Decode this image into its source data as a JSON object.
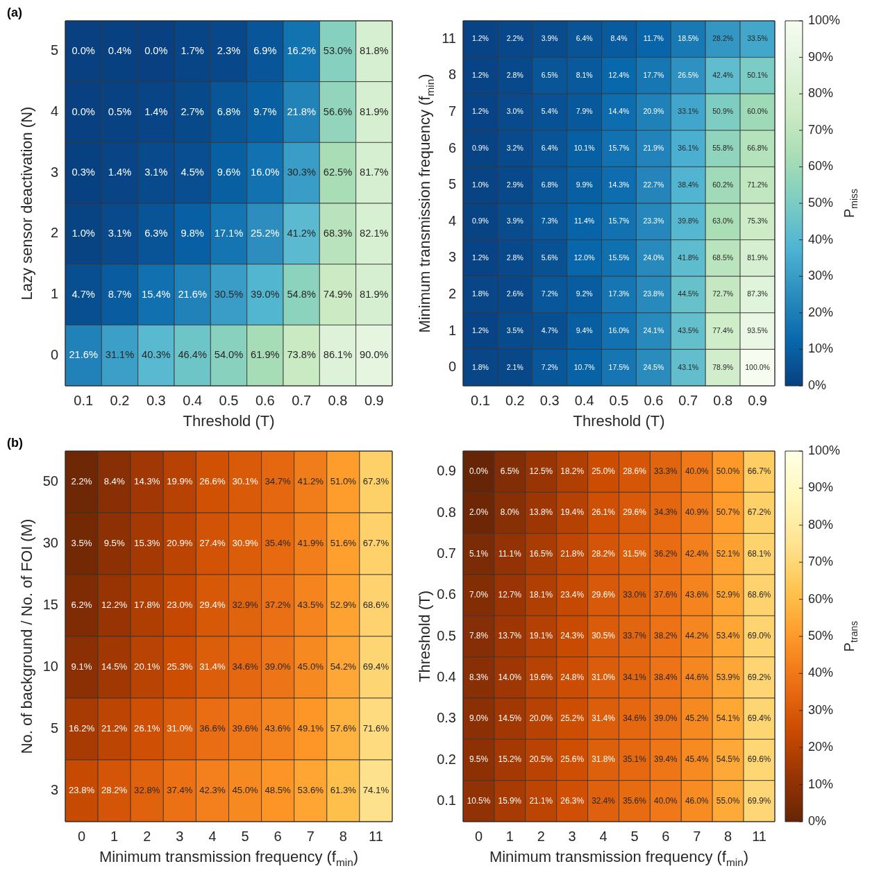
{
  "chart_data": [
    {
      "type": "heatmap",
      "annotations": [
        "(a)"
      ],
      "xlabel": "Threshold (T)",
      "ylabel": "Lazy sensor deactivation (N)",
      "categories": [
        "0.1",
        "0.2",
        "0.3",
        "0.4",
        "0.5",
        "0.6",
        "0.7",
        "0.8",
        "0.9"
      ],
      "y_categories": [
        "5",
        "4",
        "3",
        "2",
        "1",
        "0"
      ],
      "cells": [
        [
          0.0,
          0.4,
          0.0,
          1.7,
          2.3,
          6.9,
          16.2,
          53.0,
          81.8
        ],
        [
          0.0,
          0.5,
          1.4,
          2.7,
          6.8,
          9.7,
          21.8,
          56.6,
          81.9
        ],
        [
          0.3,
          1.4,
          3.1,
          4.5,
          9.6,
          16.0,
          30.3,
          62.5,
          81.7
        ],
        [
          1.0,
          3.1,
          6.3,
          9.8,
          17.1,
          25.2,
          41.2,
          68.3,
          82.1
        ],
        [
          4.7,
          8.7,
          15.4,
          21.6,
          30.5,
          39.0,
          54.8,
          74.9,
          81.9
        ],
        [
          21.6,
          31.1,
          40.3,
          46.4,
          54.0,
          61.9,
          73.8,
          86.1,
          90.0
        ]
      ],
      "cell_labels": [
        [
          "0.0%",
          "0.4%",
          "0.0%",
          "1.7%",
          "2.3%",
          "6.9%",
          "16.2%",
          "53.0%",
          "81.8%"
        ],
        [
          "0.0%",
          "0.5%",
          "1.4%",
          "2.7%",
          "6.8%",
          "9.7%",
          "21.8%",
          "56.6%",
          "81.9%"
        ],
        [
          "0.3%",
          "1.4%",
          "3.1%",
          "4.5%",
          "9.6%",
          "16.0%",
          "30.3%",
          "62.5%",
          "81.7%"
        ],
        [
          "1.0%",
          "3.1%",
          "6.3%",
          "9.8%",
          "17.1%",
          "25.2%",
          "41.2%",
          "68.3%",
          "82.1%"
        ],
        [
          "4.7%",
          "8.7%",
          "15.4%",
          "21.6%",
          "30.5%",
          "39.0%",
          "54.8%",
          "74.9%",
          "81.9%"
        ],
        [
          "21.6%",
          "31.1%",
          "40.3%",
          "46.4%",
          "54.0%",
          "61.9%",
          "73.8%",
          "86.1%",
          "90.0%"
        ]
      ]
    },
    {
      "type": "heatmap",
      "xlabel": "Threshold (T)",
      "ylabel": "Minimum transmission frequency (f$_{min}$)",
      "clabel": "P$_{miss}$",
      "categories": [
        "0.1",
        "0.2",
        "0.3",
        "0.4",
        "0.5",
        "0.6",
        "0.7",
        "0.8",
        "0.9"
      ],
      "y_categories": [
        "11",
        "8",
        "7",
        "6",
        "5",
        "4",
        "3",
        "2",
        "1",
        "0"
      ],
      "cells": [
        [
          1.2,
          2.2,
          3.9,
          6.4,
          8.4,
          11.7,
          18.5,
          28.2,
          33.5
        ],
        [
          1.2,
          2.8,
          6.5,
          8.1,
          12.4,
          17.7,
          26.5,
          42.4,
          50.1
        ],
        [
          1.2,
          3.0,
          5.4,
          7.9,
          14.4,
          20.9,
          33.1,
          50.9,
          60.0
        ],
        [
          0.9,
          3.2,
          6.4,
          10.1,
          15.7,
          21.9,
          36.1,
          55.8,
          66.8
        ],
        [
          1.0,
          2.9,
          6.8,
          9.9,
          14.3,
          22.7,
          38.4,
          60.2,
          71.2
        ],
        [
          0.9,
          3.9,
          7.3,
          11.4,
          15.7,
          23.3,
          39.8,
          63.0,
          75.3
        ],
        [
          1.2,
          2.8,
          5.6,
          12.0,
          15.5,
          24.0,
          41.8,
          68.5,
          81.9
        ],
        [
          1.8,
          2.6,
          7.2,
          9.2,
          17.3,
          23.8,
          44.5,
          72.7,
          87.3
        ],
        [
          1.2,
          3.5,
          4.7,
          9.4,
          16.0,
          24.1,
          43.5,
          77.4,
          93.5
        ],
        [
          1.8,
          2.1,
          7.2,
          10.7,
          17.5,
          24.5,
          43.1,
          78.9,
          100.0
        ]
      ],
      "cell_labels": [
        [
          "1.2%",
          "2.2%",
          "3.9%",
          "6.4%",
          "8.4%",
          "11.7%",
          "18.5%",
          "28.2%",
          "33.5%"
        ],
        [
          "1.2%",
          "2.8%",
          "6.5%",
          "8.1%",
          "12.4%",
          "17.7%",
          "26.5%",
          "42.4%",
          "50.1%"
        ],
        [
          "1.2%",
          "3.0%",
          "5.4%",
          "7.9%",
          "14.4%",
          "20.9%",
          "33.1%",
          "50.9%",
          "60.0%"
        ],
        [
          "0.9%",
          "3.2%",
          "6.4%",
          "10.1%",
          "15.7%",
          "21.9%",
          "36.1%",
          "55.8%",
          "66.8%"
        ],
        [
          "1.0%",
          "2.9%",
          "6.8%",
          "9.9%",
          "14.3%",
          "22.7%",
          "38.4%",
          "60.2%",
          "71.2%"
        ],
        [
          "0.9%",
          "3.9%",
          "7.3%",
          "11.4%",
          "15.7%",
          "23.3%",
          "39.8%",
          "63.0%",
          "75.3%"
        ],
        [
          "1.2%",
          "2.8%",
          "5.6%",
          "12.0%",
          "15.5%",
          "24.0%",
          "41.8%",
          "68.5%",
          "81.9%"
        ],
        [
          "1.8%",
          "2.6%",
          "7.2%",
          "9.2%",
          "17.3%",
          "23.8%",
          "44.5%",
          "72.7%",
          "87.3%"
        ],
        [
          "1.2%",
          "3.5%",
          "4.7%",
          "9.4%",
          "16.0%",
          "24.1%",
          "43.5%",
          "77.4%",
          "93.5%"
        ],
        [
          "1.8%",
          "2.1%",
          "7.2%",
          "10.7%",
          "17.5%",
          "24.5%",
          "43.1%",
          "78.9%",
          "100.0%"
        ]
      ],
      "clim": [
        0,
        100
      ],
      "cticks": [
        {
          "value": 0,
          "label": "0%"
        },
        {
          "value": 10,
          "label": "10%"
        },
        {
          "value": 20,
          "label": "20%"
        },
        {
          "value": 30,
          "label": "30%"
        },
        {
          "value": 40,
          "label": "40%"
        },
        {
          "value": 50,
          "label": "50%"
        },
        {
          "value": 60,
          "label": "60%"
        },
        {
          "value": 70,
          "label": "70%"
        },
        {
          "value": 80,
          "label": "80%"
        },
        {
          "value": 90,
          "label": "90%"
        },
        {
          "value": 100,
          "label": "100%"
        }
      ],
      "colors": [
        "#084081",
        "#0868ac",
        "#2b8cbe",
        "#4eb3d3",
        "#7bccc4",
        "#a8ddb5",
        "#ccebc5",
        "#e0f3db",
        "#f7fcf0"
      ]
    },
    {
      "type": "heatmap",
      "annotations": [
        "(b)"
      ],
      "xlabel": "Minimum transmission frequency (f$_{min}$)",
      "ylabel": "No. of background / No. of FOI (M)",
      "categories": [
        "0",
        "1",
        "2",
        "3",
        "4",
        "5",
        "6",
        "7",
        "8",
        "11"
      ],
      "y_categories": [
        "50",
        "30",
        "15",
        "10",
        "5",
        "3"
      ],
      "cells": [
        [
          2.2,
          8.4,
          14.3,
          19.9,
          26.6,
          30.1,
          34.7,
          41.2,
          51.0,
          67.3
        ],
        [
          3.5,
          9.5,
          15.3,
          20.9,
          27.4,
          30.9,
          35.4,
          41.9,
          51.6,
          67.7
        ],
        [
          6.2,
          12.2,
          17.8,
          23.0,
          29.4,
          32.9,
          37.2,
          43.5,
          52.9,
          68.6
        ],
        [
          9.1,
          14.5,
          20.1,
          25.3,
          31.4,
          34.6,
          39.0,
          45.0,
          54.2,
          69.4
        ],
        [
          16.2,
          21.2,
          26.1,
          31.0,
          36.6,
          39.6,
          43.6,
          49.1,
          57.6,
          71.6
        ],
        [
          23.8,
          28.2,
          32.8,
          37.4,
          42.3,
          45.0,
          48.5,
          53.6,
          61.3,
          74.1
        ]
      ],
      "cell_labels": [
        [
          "2.2%",
          "8.4%",
          "14.3%",
          "19.9%",
          "26.6%",
          "30.1%",
          "34.7%",
          "41.2%",
          "51.0%",
          "67.3%"
        ],
        [
          "3.5%",
          "9.5%",
          "15.3%",
          "20.9%",
          "27.4%",
          "30.9%",
          "35.4%",
          "41.9%",
          "51.6%",
          "67.7%"
        ],
        [
          "6.2%",
          "12.2%",
          "17.8%",
          "23.0%",
          "29.4%",
          "32.9%",
          "37.2%",
          "43.5%",
          "52.9%",
          "68.6%"
        ],
        [
          "9.1%",
          "14.5%",
          "20.1%",
          "25.3%",
          "31.4%",
          "34.6%",
          "39.0%",
          "45.0%",
          "54.2%",
          "69.4%"
        ],
        [
          "16.2%",
          "21.2%",
          "26.1%",
          "31.0%",
          "36.6%",
          "39.6%",
          "43.6%",
          "49.1%",
          "57.6%",
          "71.6%"
        ],
        [
          "23.8%",
          "28.2%",
          "32.8%",
          "37.4%",
          "42.3%",
          "45.0%",
          "48.5%",
          "53.6%",
          "61.3%",
          "74.1%"
        ]
      ]
    },
    {
      "type": "heatmap",
      "xlabel": "Minimum transmission frequency (f$_{min}$)",
      "ylabel": "Threshold (T)",
      "clabel": "P$_{trans}$",
      "categories": [
        "0",
        "1",
        "2",
        "3",
        "4",
        "5",
        "6",
        "7",
        "8",
        "11"
      ],
      "y_categories": [
        "0.9",
        "0.8",
        "0.7",
        "0.6",
        "0.5",
        "0.4",
        "0.3",
        "0.2",
        "0.1"
      ],
      "cells": [
        [
          0.0,
          6.5,
          12.5,
          18.2,
          25.0,
          28.6,
          33.3,
          40.0,
          50.0,
          66.7
        ],
        [
          2.0,
          8.0,
          13.8,
          19.4,
          26.1,
          29.6,
          34.3,
          40.9,
          50.7,
          67.2
        ],
        [
          5.1,
          11.1,
          16.5,
          21.8,
          28.2,
          31.5,
          36.2,
          42.4,
          52.1,
          68.1
        ],
        [
          7.0,
          12.7,
          18.1,
          23.4,
          29.6,
          33.0,
          37.6,
          43.6,
          52.9,
          68.6
        ],
        [
          7.8,
          13.7,
          19.1,
          24.3,
          30.5,
          33.7,
          38.2,
          44.2,
          53.4,
          69.0
        ],
        [
          8.3,
          14.0,
          19.6,
          24.8,
          31.0,
          34.1,
          38.4,
          44.6,
          53.9,
          69.2
        ],
        [
          9.0,
          14.5,
          20.0,
          25.2,
          31.4,
          34.6,
          39.0,
          45.2,
          54.1,
          69.4
        ],
        [
          9.5,
          15.2,
          20.5,
          25.6,
          31.8,
          35.1,
          39.4,
          45.4,
          54.5,
          69.6
        ],
        [
          10.5,
          15.9,
          21.1,
          26.3,
          32.4,
          35.6,
          40.0,
          46.0,
          55.0,
          69.9
        ]
      ],
      "cell_labels": [
        [
          "0.0%",
          "6.5%",
          "12.5%",
          "18.2%",
          "25.0%",
          "28.6%",
          "33.3%",
          "40.0%",
          "50.0%",
          "66.7%"
        ],
        [
          "2.0%",
          "8.0%",
          "13.8%",
          "19.4%",
          "26.1%",
          "29.6%",
          "34.3%",
          "40.9%",
          "50.7%",
          "67.2%"
        ],
        [
          "5.1%",
          "11.1%",
          "16.5%",
          "21.8%",
          "28.2%",
          "31.5%",
          "36.2%",
          "42.4%",
          "52.1%",
          "68.1%"
        ],
        [
          "7.0%",
          "12.7%",
          "18.1%",
          "23.4%",
          "29.6%",
          "33.0%",
          "37.6%",
          "43.6%",
          "52.9%",
          "68.6%"
        ],
        [
          "7.8%",
          "13.7%",
          "19.1%",
          "24.3%",
          "30.5%",
          "33.7%",
          "38.2%",
          "44.2%",
          "53.4%",
          "69.0%"
        ],
        [
          "8.3%",
          "14.0%",
          "19.6%",
          "24.8%",
          "31.0%",
          "34.1%",
          "38.4%",
          "44.6%",
          "53.9%",
          "69.2%"
        ],
        [
          "9.0%",
          "14.5%",
          "20.0%",
          "25.2%",
          "31.4%",
          "34.6%",
          "39.0%",
          "45.2%",
          "54.1%",
          "69.4%"
        ],
        [
          "9.5%",
          "15.2%",
          "20.5%",
          "25.6%",
          "31.8%",
          "35.1%",
          "39.4%",
          "45.4%",
          "54.5%",
          "69.6%"
        ],
        [
          "10.5%",
          "15.9%",
          "21.1%",
          "26.3%",
          "32.4%",
          "35.6%",
          "40.0%",
          "46.0%",
          "55.0%",
          "69.9%"
        ]
      ],
      "clim": [
        0,
        100
      ],
      "cticks": [
        {
          "value": 0,
          "label": "0%"
        },
        {
          "value": 10,
          "label": "10%"
        },
        {
          "value": 20,
          "label": "20%"
        },
        {
          "value": 30,
          "label": "30%"
        },
        {
          "value": 40,
          "label": "40%"
        },
        {
          "value": 50,
          "label": "50%"
        },
        {
          "value": 60,
          "label": "60%"
        },
        {
          "value": 70,
          "label": "70%"
        },
        {
          "value": 80,
          "label": "80%"
        },
        {
          "value": 90,
          "label": "90%"
        },
        {
          "value": 100,
          "label": "100%"
        }
      ],
      "colors": [
        "#662506",
        "#993404",
        "#cc4c02",
        "#ec7014",
        "#fe9929",
        "#fec44f",
        "#fee391",
        "#fff7bc",
        "#ffffe5"
      ]
    }
  ]
}
